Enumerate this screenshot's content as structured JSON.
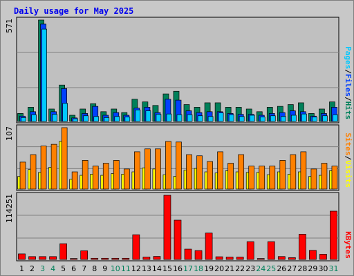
{
  "chart_data": [
    {
      "type": "bar",
      "panel": "pages_files_hits",
      "title": "Daily usage for May 2025",
      "ymax_label": "571",
      "right_label": [
        "Pages",
        "Files",
        "Hits"
      ],
      "categories": [
        "1",
        "2",
        "3",
        "4",
        "5",
        "6",
        "7",
        "8",
        "9",
        "10",
        "11",
        "12",
        "13",
        "14",
        "15",
        "16",
        "17",
        "18",
        "19",
        "20",
        "21",
        "22",
        "23",
        "24",
        "25",
        "26",
        "27",
        "28",
        "29",
        "30",
        "31"
      ],
      "weekend_days": [
        "3",
        "4",
        "10",
        "11",
        "17",
        "18",
        "24",
        "25",
        "31"
      ],
      "ylim": [
        0,
        571
      ],
      "series": [
        {
          "name": "Hits",
          "values": [
            45,
            80,
            571,
            70,
            205,
            35,
            70,
            100,
            55,
            70,
            50,
            125,
            110,
            90,
            155,
            170,
            95,
            80,
            105,
            105,
            80,
            80,
            70,
            55,
            80,
            85,
            95,
            105,
            45,
            70,
            110
          ]
        },
        {
          "name": "Files",
          "values": [
            30,
            55,
            548,
            55,
            185,
            20,
            45,
            85,
            35,
            50,
            35,
            75,
            80,
            50,
            125,
            120,
            60,
            50,
            55,
            55,
            45,
            40,
            40,
            35,
            45,
            50,
            60,
            55,
            30,
            45,
            80
          ]
        },
        {
          "name": "Pages",
          "values": [
            22,
            38,
            520,
            40,
            102,
            15,
            32,
            28,
            22,
            28,
            25,
            65,
            60,
            40,
            42,
            38,
            38,
            32,
            28,
            48,
            38,
            28,
            35,
            25,
            32,
            28,
            35,
            42,
            25,
            32,
            38
          ]
        }
      ]
    },
    {
      "type": "bar",
      "panel": "sites_visits",
      "ymax_label": "107",
      "right_label": [
        "Sites",
        "Visits"
      ],
      "categories": [
        "1",
        "2",
        "3",
        "4",
        "5",
        "6",
        "7",
        "8",
        "9",
        "10",
        "11",
        "12",
        "13",
        "14",
        "15",
        "16",
        "17",
        "18",
        "19",
        "20",
        "21",
        "22",
        "23",
        "24",
        "25",
        "26",
        "27",
        "28",
        "29",
        "30",
        "31"
      ],
      "ylim": [
        0,
        107
      ],
      "series": [
        {
          "name": "Visits",
          "values": [
            47,
            60,
            75,
            78,
            107,
            30,
            50,
            40,
            45,
            50,
            35,
            65,
            70,
            70,
            83,
            82,
            60,
            58,
            48,
            65,
            45,
            60,
            40,
            40,
            40,
            50,
            60,
            65,
            35,
            45,
            40
          ]
        },
        {
          "name": "Sites",
          "values": [
            22,
            34,
            29,
            38,
            83,
            17,
            24,
            26,
            24,
            27,
            26,
            30,
            37,
            35,
            25,
            22,
            33,
            36,
            30,
            28,
            32,
            30,
            29,
            29,
            25,
            30,
            26,
            30,
            22,
            24,
            32
          ]
        }
      ]
    },
    {
      "type": "bar",
      "panel": "kbytes",
      "ymax_label": "114251",
      "right_label": [
        "KBytes"
      ],
      "categories": [
        "1",
        "2",
        "3",
        "4",
        "5",
        "6",
        "7",
        "8",
        "9",
        "10",
        "11",
        "12",
        "13",
        "14",
        "15",
        "16",
        "17",
        "18",
        "19",
        "20",
        "21",
        "22",
        "23",
        "24",
        "25",
        "26",
        "27",
        "28",
        "29",
        "30",
        "31"
      ],
      "ylim": [
        0,
        114251
      ],
      "series": [
        {
          "name": "KBytes",
          "values": [
            9900,
            5100,
            5100,
            5100,
            28000,
            1700,
            15400,
            2100,
            2100,
            2100,
            2100,
            44000,
            4200,
            5400,
            114251,
            70000,
            18400,
            15800,
            47000,
            4800,
            4200,
            4200,
            31600,
            1700,
            31600,
            5200,
            3200,
            45000,
            16200,
            9300,
            86000
          ]
        }
      ]
    }
  ],
  "colors": {
    "frame": "#c8c8c8",
    "plot_bg": "#c0c0c0",
    "gridline": "#808080",
    "title": "#0000ee",
    "hits": "#00805a",
    "files": "#0040ff",
    "pages": "#00c8ff",
    "visits": "#ff8000",
    "sites": "#ffff00",
    "kbytes": "#ff0000",
    "weekday_label": "#000000",
    "weekend_label": "#00805a"
  }
}
